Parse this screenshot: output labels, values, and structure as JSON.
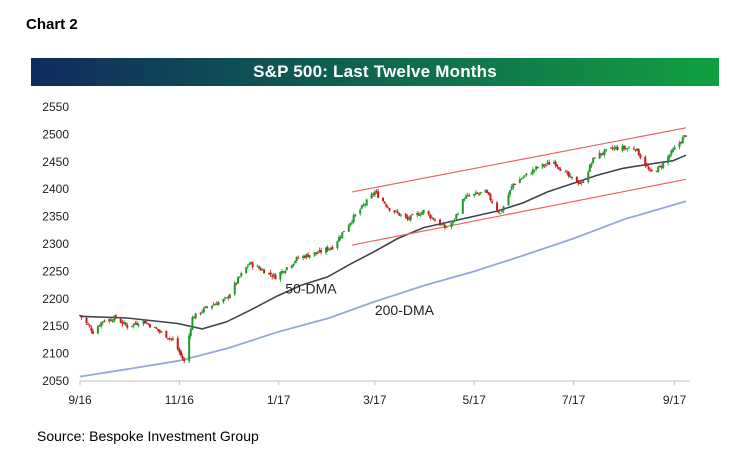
{
  "caption": "Chart 2",
  "title_banner": {
    "text": "S&P 500: Last Twelve Months",
    "gradient_start": "#0f2b5f",
    "gradient_end": "#10a040"
  },
  "source": "Source: Bespoke Investment Group",
  "chart_data": {
    "type": "candlestick",
    "title": "S&P 500: Last Twelve Months",
    "x_axis": {
      "type": "date",
      "range": [
        "2016-09-01",
        "2017-09-08"
      ],
      "ticks": [
        {
          "label": "9/16",
          "date": "2016-09-01"
        },
        {
          "label": "11/16",
          "date": "2016-11-01"
        },
        {
          "label": "1/17",
          "date": "2017-01-01"
        },
        {
          "label": "3/17",
          "date": "2017-03-01"
        },
        {
          "label": "5/17",
          "date": "2017-05-01"
        },
        {
          "label": "7/17",
          "date": "2017-07-01"
        },
        {
          "label": "9/17",
          "date": "2017-09-01"
        }
      ]
    },
    "y_axis": {
      "range": [
        2050,
        2550
      ],
      "ticks": [
        2050,
        2100,
        2150,
        2200,
        2250,
        2300,
        2350,
        2400,
        2450,
        2500,
        2550
      ],
      "grid": false
    },
    "colors": {
      "up": "#1e9a2c",
      "down": "#cc1a1a",
      "dma50": "#3d4351",
      "dma200": "#94a9d6",
      "channel": "#f06060"
    },
    "price_path": [
      {
        "date": "2016-09-01",
        "close": 2170
      },
      {
        "date": "2016-09-09",
        "close": 2140
      },
      {
        "date": "2016-09-15",
        "close": 2160
      },
      {
        "date": "2016-09-23",
        "close": 2165
      },
      {
        "date": "2016-09-30",
        "close": 2150
      },
      {
        "date": "2016-10-10",
        "close": 2160
      },
      {
        "date": "2016-10-20",
        "close": 2140
      },
      {
        "date": "2016-10-28",
        "close": 2125
      },
      {
        "date": "2016-11-04",
        "close": 2085
      },
      {
        "date": "2016-11-09",
        "close": 2165
      },
      {
        "date": "2016-11-18",
        "close": 2185
      },
      {
        "date": "2016-11-30",
        "close": 2200
      },
      {
        "date": "2016-12-08",
        "close": 2240
      },
      {
        "date": "2016-12-14",
        "close": 2265
      },
      {
        "date": "2016-12-30",
        "close": 2240
      },
      {
        "date": "2017-01-13",
        "close": 2275
      },
      {
        "date": "2017-01-26",
        "close": 2285
      },
      {
        "date": "2017-02-03",
        "close": 2295
      },
      {
        "date": "2017-02-15",
        "close": 2345
      },
      {
        "date": "2017-03-01",
        "close": 2395
      },
      {
        "date": "2017-03-10",
        "close": 2365
      },
      {
        "date": "2017-03-21",
        "close": 2345
      },
      {
        "date": "2017-03-31",
        "close": 2360
      },
      {
        "date": "2017-04-13",
        "close": 2330
      },
      {
        "date": "2017-04-18",
        "close": 2340
      },
      {
        "date": "2017-04-25",
        "close": 2385
      },
      {
        "date": "2017-05-08",
        "close": 2395
      },
      {
        "date": "2017-05-17",
        "close": 2355
      },
      {
        "date": "2017-05-25",
        "close": 2410
      },
      {
        "date": "2017-06-09",
        "close": 2440
      },
      {
        "date": "2017-06-19",
        "close": 2450
      },
      {
        "date": "2017-06-29",
        "close": 2420
      },
      {
        "date": "2017-07-06",
        "close": 2410
      },
      {
        "date": "2017-07-14",
        "close": 2460
      },
      {
        "date": "2017-07-26",
        "close": 2475
      },
      {
        "date": "2017-08-08",
        "close": 2475
      },
      {
        "date": "2017-08-17",
        "close": 2430
      },
      {
        "date": "2017-08-23",
        "close": 2440
      },
      {
        "date": "2017-08-31",
        "close": 2470
      },
      {
        "date": "2017-09-08",
        "close": 2500
      }
    ],
    "series": [
      {
        "name": "50-DMA",
        "points": [
          {
            "date": "2016-09-01",
            "value": 2168
          },
          {
            "date": "2016-09-30",
            "value": 2165
          },
          {
            "date": "2016-10-31",
            "value": 2155
          },
          {
            "date": "2016-11-15",
            "value": 2145
          },
          {
            "date": "2016-11-30",
            "value": 2158
          },
          {
            "date": "2016-12-15",
            "value": 2180
          },
          {
            "date": "2016-12-31",
            "value": 2205
          },
          {
            "date": "2017-01-15",
            "value": 2225
          },
          {
            "date": "2017-01-31",
            "value": 2240
          },
          {
            "date": "2017-02-15",
            "value": 2265
          },
          {
            "date": "2017-02-28",
            "value": 2285
          },
          {
            "date": "2017-03-15",
            "value": 2310
          },
          {
            "date": "2017-03-31",
            "value": 2330
          },
          {
            "date": "2017-04-15",
            "value": 2340
          },
          {
            "date": "2017-04-30",
            "value": 2350
          },
          {
            "date": "2017-05-15",
            "value": 2360
          },
          {
            "date": "2017-05-31",
            "value": 2375
          },
          {
            "date": "2017-06-15",
            "value": 2395
          },
          {
            "date": "2017-06-30",
            "value": 2410
          },
          {
            "date": "2017-07-15",
            "value": 2425
          },
          {
            "date": "2017-07-31",
            "value": 2438
          },
          {
            "date": "2017-08-15",
            "value": 2445
          },
          {
            "date": "2017-08-31",
            "value": 2452
          },
          {
            "date": "2017-09-08",
            "value": 2462
          }
        ]
      },
      {
        "name": "200-DMA",
        "points": [
          {
            "date": "2016-09-01",
            "value": 2058
          },
          {
            "date": "2016-10-01",
            "value": 2072
          },
          {
            "date": "2016-11-01",
            "value": 2087
          },
          {
            "date": "2016-12-01",
            "value": 2110
          },
          {
            "date": "2017-01-01",
            "value": 2140
          },
          {
            "date": "2017-02-01",
            "value": 2165
          },
          {
            "date": "2017-03-01",
            "value": 2195
          },
          {
            "date": "2017-04-01",
            "value": 2225
          },
          {
            "date": "2017-05-01",
            "value": 2250
          },
          {
            "date": "2017-06-01",
            "value": 2280
          },
          {
            "date": "2017-07-01",
            "value": 2310
          },
          {
            "date": "2017-08-01",
            "value": 2345
          },
          {
            "date": "2017-09-08",
            "value": 2378
          }
        ]
      }
    ],
    "channel_lines": [
      {
        "name": "upper",
        "start": {
          "date": "2017-02-15",
          "value": 2395
        },
        "end": {
          "date": "2017-09-08",
          "value": 2512
        }
      },
      {
        "name": "lower",
        "start": {
          "date": "2017-02-15",
          "value": 2298
        },
        "end": {
          "date": "2017-09-08",
          "value": 2418
        }
      }
    ],
    "annotations": [
      {
        "text": "50-DMA",
        "date": "2017-01-05",
        "value": 2210
      },
      {
        "text": "200-DMA",
        "date": "2017-03-01",
        "value": 2170
      }
    ]
  }
}
